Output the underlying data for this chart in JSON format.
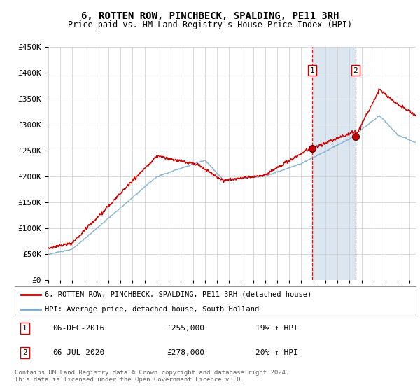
{
  "title": "6, ROTTEN ROW, PINCHBECK, SPALDING, PE11 3RH",
  "subtitle": "Price paid vs. HM Land Registry's House Price Index (HPI)",
  "ylabel_ticks": [
    "£0",
    "£50K",
    "£100K",
    "£150K",
    "£200K",
    "£250K",
    "£300K",
    "£350K",
    "£400K",
    "£450K"
  ],
  "ylim": [
    0,
    450000
  ],
  "xlim_start": 1995.0,
  "xlim_end": 2025.5,
  "red_color": "#cc0000",
  "blue_color": "#7aabcc",
  "sale1_marker_color": "#990000",
  "sale2_marker_color": "#990000",
  "marker_bg": "#cc0000",
  "sale1": {
    "date_num": 2016.92,
    "value": 255000,
    "label": "1",
    "pct": "19% ↑ HPI",
    "date_str": "06-DEC-2016"
  },
  "sale2": {
    "date_num": 2020.5,
    "value": 278000,
    "label": "2",
    "pct": "20% ↑ HPI",
    "date_str": "06-JUL-2020"
  },
  "legend_line1": "6, ROTTEN ROW, PINCHBECK, SPALDING, PE11 3RH (detached house)",
  "legend_line2": "HPI: Average price, detached house, South Holland",
  "footnote": "Contains HM Land Registry data © Crown copyright and database right 2024.\nThis data is licensed under the Open Government Licence v3.0.",
  "grid_color": "#cccccc",
  "bg_color": "#ffffff",
  "highlight_bg": "#dce6f1"
}
